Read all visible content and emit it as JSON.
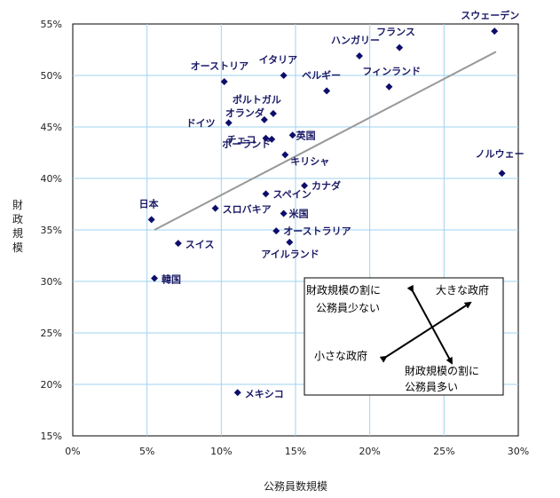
{
  "chart_data": {
    "type": "scatter",
    "xlabel": "公務員数規模",
    "ylabel": "財政規模",
    "xlim": [
      0,
      30
    ],
    "ylim": [
      15,
      55
    ],
    "x_tick_labels": [
      "0%",
      "5%",
      "10%",
      "15%",
      "20%",
      "25%",
      "30%"
    ],
    "y_tick_labels": [
      "15%",
      "20%",
      "25%",
      "30%",
      "35%",
      "40%",
      "45%",
      "50%",
      "55%"
    ],
    "grid": true,
    "marker_color": "#0d0d6b",
    "trendline": {
      "x": [
        5.5,
        28.5
      ],
      "y": [
        35.0,
        52.3
      ],
      "color": "#999999"
    },
    "points": [
      {
        "label": "スウェーデン",
        "x": 28.4,
        "y": 54.3
      },
      {
        "label": "フランス",
        "x": 22.0,
        "y": 52.7
      },
      {
        "label": "ハンガリー",
        "x": 19.3,
        "y": 51.9
      },
      {
        "label": "イタリア",
        "x": 14.2,
        "y": 50.0
      },
      {
        "label": "オーストリア",
        "x": 10.2,
        "y": 49.4
      },
      {
        "label": "ベルギー",
        "x": 17.1,
        "y": 48.5
      },
      {
        "label": "フィンランド",
        "x": 21.3,
        "y": 48.9
      },
      {
        "label": "ポルトガル",
        "x": 13.5,
        "y": 46.3
      },
      {
        "label": "オランダ",
        "x": 12.9,
        "y": 45.7
      },
      {
        "label": "ドイツ",
        "x": 10.5,
        "y": 45.4
      },
      {
        "label": "チェコ",
        "x": 13.0,
        "y": 43.9
      },
      {
        "label": "英国",
        "x": 14.8,
        "y": 44.2
      },
      {
        "label": "ポーランド",
        "x": 13.4,
        "y": 43.8
      },
      {
        "label": "キリシャ",
        "x": 14.3,
        "y": 42.3
      },
      {
        "label": "ノルウェー",
        "x": 28.9,
        "y": 40.5
      },
      {
        "label": "カナダ",
        "x": 15.6,
        "y": 39.3
      },
      {
        "label": "スペイン",
        "x": 13.0,
        "y": 38.5
      },
      {
        "label": "スロバキア",
        "x": 9.6,
        "y": 37.1
      },
      {
        "label": "米国",
        "x": 14.2,
        "y": 36.6
      },
      {
        "label": "日本",
        "x": 5.3,
        "y": 36.0
      },
      {
        "label": "オーストラリア",
        "x": 13.7,
        "y": 34.9
      },
      {
        "label": "スイス",
        "x": 7.1,
        "y": 33.7
      },
      {
        "label": "アイルランド",
        "x": 14.6,
        "y": 33.8
      },
      {
        "label": "韓国",
        "x": 5.5,
        "y": 30.3
      },
      {
        "label": "メキシコ",
        "x": 11.1,
        "y": 19.2
      }
    ],
    "annotation_box": {
      "top_left": [
        "財政規模の割に",
        "公務員少ない"
      ],
      "top_right": "大きな政府",
      "bottom_left": "小さな政府",
      "bottom_right": [
        "財政規模の割に",
        "公務員多い"
      ]
    }
  }
}
